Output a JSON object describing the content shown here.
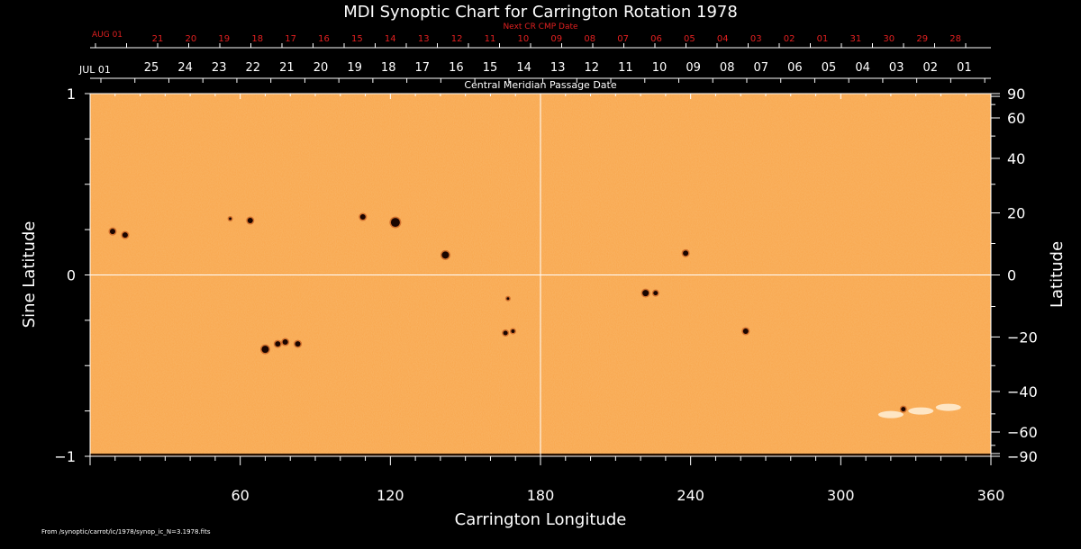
{
  "chart_data": {
    "type": "heatmap",
    "title": "MDI Synoptic Chart for Carrington Rotation 1978",
    "xlabel": "Carrington Longitude",
    "ylabel_left": "Sine Latitude",
    "ylabel_right": "Latitude",
    "xlim": [
      0,
      360
    ],
    "ylim": [
      -1,
      1
    ],
    "x_ticks": [
      60,
      120,
      180,
      240,
      300,
      360
    ],
    "y_ticks_left": [
      {
        "v": 1,
        "label": "1"
      },
      {
        "v": 0,
        "label": "0"
      },
      {
        "v": -1,
        "label": "−1"
      }
    ],
    "y_ticks_right": [
      {
        "deg": 90,
        "label": "90"
      },
      {
        "deg": 60,
        "label": "60"
      },
      {
        "deg": 40,
        "label": "40"
      },
      {
        "deg": 20,
        "label": "20"
      },
      {
        "deg": 0,
        "label": "0"
      },
      {
        "deg": -20,
        "label": "−20"
      },
      {
        "deg": -40,
        "label": "−40"
      },
      {
        "deg": -60,
        "label": "−60"
      },
      {
        "deg": -90,
        "label": "−90"
      }
    ],
    "cmp_axis": {
      "caption": "Central Meridian Passage Date",
      "start_label": "JUL 01",
      "labels": [
        "25",
        "24",
        "23",
        "22",
        "21",
        "20",
        "19",
        "18",
        "17",
        "16",
        "15",
        "14",
        "13",
        "12",
        "11",
        "10",
        "09",
        "08",
        "07",
        "06",
        "05",
        "04",
        "03",
        "02",
        "01"
      ]
    },
    "next_cmp_axis": {
      "caption": "Next CR CMP Date",
      "start_label": "AUG 01",
      "labels": [
        "21",
        "20",
        "19",
        "18",
        "17",
        "16",
        "15",
        "14",
        "13",
        "12",
        "11",
        "10",
        "09",
        "08",
        "07",
        "06",
        "05",
        "04",
        "03",
        "02",
        "01",
        "31",
        "30",
        "29",
        "28"
      ]
    },
    "gridlines": {
      "x": [
        180
      ],
      "y": [
        0
      ]
    },
    "spots": [
      {
        "lon": 9,
        "sinlat": 0.24,
        "r": 3
      },
      {
        "lon": 14,
        "sinlat": 0.22,
        "r": 3
      },
      {
        "lon": 56,
        "sinlat": 0.31,
        "r": 1.5
      },
      {
        "lon": 64,
        "sinlat": 0.3,
        "r": 3
      },
      {
        "lon": 109,
        "sinlat": 0.32,
        "r": 3
      },
      {
        "lon": 122,
        "sinlat": 0.29,
        "r": 5
      },
      {
        "lon": 142,
        "sinlat": 0.11,
        "r": 4
      },
      {
        "lon": 70,
        "sinlat": -0.41,
        "r": 4
      },
      {
        "lon": 75,
        "sinlat": -0.38,
        "r": 3
      },
      {
        "lon": 78,
        "sinlat": -0.37,
        "r": 3
      },
      {
        "lon": 83,
        "sinlat": -0.38,
        "r": 3
      },
      {
        "lon": 166,
        "sinlat": -0.32,
        "r": 2.5
      },
      {
        "lon": 169,
        "sinlat": -0.31,
        "r": 2
      },
      {
        "lon": 167,
        "sinlat": -0.13,
        "r": 1.5
      },
      {
        "lon": 222,
        "sinlat": -0.1,
        "r": 3.5
      },
      {
        "lon": 226,
        "sinlat": -0.1,
        "r": 2.5
      },
      {
        "lon": 238,
        "sinlat": 0.12,
        "r": 3
      },
      {
        "lon": 262,
        "sinlat": -0.31,
        "r": 3
      },
      {
        "lon": 325,
        "sinlat": -0.74,
        "r": 2.5
      }
    ],
    "white_patches": [
      {
        "lon": 320,
        "sinlat": -0.77
      },
      {
        "lon": 332,
        "sinlat": -0.75
      },
      {
        "lon": 343,
        "sinlat": -0.73
      }
    ],
    "colors": {
      "background": "#000000",
      "map": "#f8a54a",
      "grid": "#ffffff",
      "spot": "#1a0500",
      "spot_halo": "#b84a12",
      "next_cmp": "#e02020",
      "cmp": "#ffffff"
    }
  },
  "footer": {
    "source": "From /synoptic/carrot/ic/1978/synop_ic_N=3.1978.fits"
  }
}
